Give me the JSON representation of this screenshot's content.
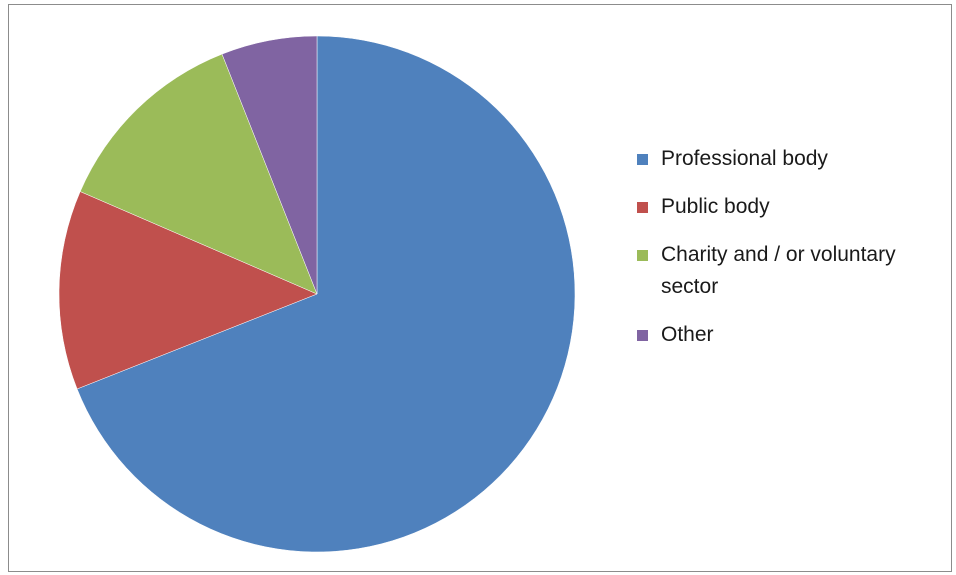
{
  "chart_data": {
    "type": "pie",
    "title": "",
    "legend_position": "right",
    "slices": [
      {
        "name": "Professional body",
        "value": 69,
        "color": "#4F81BD"
      },
      {
        "name": "Public body",
        "value": 12.5,
        "color": "#C0504D"
      },
      {
        "name": "Charity and / or voluntary sector",
        "value": 12.5,
        "color": "#9BBB59"
      },
      {
        "name": "Other",
        "value": 6,
        "color": "#8064A2"
      }
    ]
  }
}
